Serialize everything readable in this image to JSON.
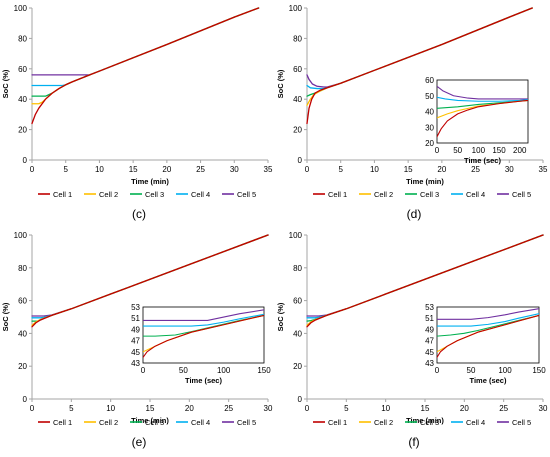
{
  "colors": {
    "cell1": "#c00000",
    "cell2": "#ffc000",
    "cell3": "#00b050",
    "cell4": "#00b0f0",
    "cell5": "#7030a0",
    "axis": "#a6a6a6",
    "inset_frame": "#000000"
  },
  "chart_data": [
    {
      "panel_label": "(c)",
      "type": "line",
      "xlabel": "Time (min)",
      "ylabel": "SoC (%)",
      "xlim": [
        0,
        35
      ],
      "ylim": [
        0,
        100
      ],
      "xticks": [
        0,
        5,
        10,
        15,
        20,
        25,
        30,
        35
      ],
      "yticks": [
        0,
        20,
        40,
        60,
        80,
        100
      ],
      "grid": false,
      "legend_position": "bottom",
      "series": [
        {
          "name": "Cell 1",
          "color_key": "cell1",
          "x": [
            0,
            0.5,
            1,
            2,
            3,
            4,
            5,
            6,
            8,
            10,
            20,
            30,
            33.6
          ],
          "y": [
            24,
            30,
            34,
            40,
            44,
            47,
            49.5,
            51.5,
            55,
            58.5,
            76,
            94,
            100
          ]
        },
        {
          "name": "Cell 2",
          "color_key": "cell2",
          "x": [
            0,
            1,
            1.5,
            2,
            3,
            4,
            5,
            6,
            8,
            10,
            20,
            30,
            33.6
          ],
          "y": [
            37,
            37,
            38,
            40,
            44,
            47,
            49.5,
            51.5,
            55,
            58.5,
            76,
            94,
            100
          ]
        },
        {
          "name": "Cell 3",
          "color_key": "cell3",
          "x": [
            0,
            2,
            3,
            4,
            5,
            6,
            8,
            10,
            20,
            30,
            33.6
          ],
          "y": [
            42,
            42,
            44,
            47,
            49.5,
            51.5,
            55,
            58.5,
            76,
            94,
            100
          ]
        },
        {
          "name": "Cell 4",
          "color_key": "cell4",
          "x": [
            0,
            4.5,
            5,
            6,
            8,
            10,
            20,
            30,
            33.6
          ],
          "y": [
            49,
            49,
            49.5,
            51.5,
            55,
            58.5,
            76,
            94,
            100
          ]
        },
        {
          "name": "Cell 5",
          "color_key": "cell5",
          "x": [
            0,
            8.5,
            10,
            20,
            30,
            33.6
          ],
          "y": [
            56,
            56,
            58.5,
            76,
            94,
            100
          ]
        }
      ]
    },
    {
      "panel_label": "(d)",
      "type": "line",
      "xlabel": "Time (min)",
      "ylabel": "SoC (%)",
      "xlim": [
        0,
        35
      ],
      "ylim": [
        0,
        100
      ],
      "xticks": [
        0,
        5,
        10,
        15,
        20,
        25,
        30,
        35
      ],
      "yticks": [
        0,
        20,
        40,
        60,
        80,
        100
      ],
      "grid": false,
      "legend_position": "bottom",
      "series": [
        {
          "name": "Cell 1",
          "color_key": "cell1",
          "x": [
            0,
            0.3,
            0.7,
            1.2,
            2,
            3,
            5,
            10,
            20,
            30,
            33.4
          ],
          "y": [
            24,
            34,
            40,
            44,
            46,
            47.5,
            50.5,
            59,
            76,
            94,
            100
          ]
        },
        {
          "name": "Cell 2",
          "color_key": "cell2",
          "x": [
            0,
            0.5,
            1,
            2,
            3,
            5,
            10,
            20,
            30,
            33.4
          ],
          "y": [
            36,
            40,
            43,
            45.5,
            47.5,
            50.5,
            59,
            76,
            94,
            100
          ]
        },
        {
          "name": "Cell 3",
          "color_key": "cell3",
          "x": [
            0,
            0.5,
            1.5,
            2.5,
            3,
            5,
            10,
            20,
            30,
            33.4
          ],
          "y": [
            42,
            43,
            44.5,
            46.5,
            47.5,
            50.5,
            59,
            76,
            94,
            100
          ]
        },
        {
          "name": "Cell 4",
          "color_key": "cell4",
          "x": [
            0,
            0.5,
            1.5,
            2.5,
            3,
            5,
            10,
            20,
            30,
            33.4
          ],
          "y": [
            49,
            47.5,
            47,
            47,
            47.5,
            50.5,
            59,
            76,
            94,
            100
          ]
        },
        {
          "name": "Cell 5",
          "color_key": "cell5",
          "x": [
            0,
            0.3,
            0.8,
            1.5,
            2.5,
            3,
            5,
            10,
            20,
            30,
            33.4
          ],
          "y": [
            56,
            53,
            50,
            48.5,
            48,
            48,
            50.5,
            59,
            76,
            94,
            100
          ]
        }
      ],
      "inset": {
        "xlabel": "Time (sec)",
        "xlim": [
          0,
          220
        ],
        "ylim": [
          20,
          60
        ],
        "xticks": [
          0,
          50,
          100,
          150,
          200
        ],
        "yticks": [
          20,
          30,
          40,
          50,
          60
        ],
        "series": [
          {
            "name": "Cell 1",
            "color_key": "cell1",
            "x": [
              0,
              10,
              25,
              50,
              75,
              100,
              150,
              200,
              220
            ],
            "y": [
              24,
              29,
              34,
              38.5,
              41,
              43,
              45,
              46.5,
              47
            ]
          },
          {
            "name": "Cell 2",
            "color_key": "cell2",
            "x": [
              0,
              25,
              50,
              75,
              100,
              150,
              200,
              220
            ],
            "y": [
              36,
              38.5,
              40.5,
              42,
              43.5,
              45,
              46.5,
              47
            ]
          },
          {
            "name": "Cell 3",
            "color_key": "cell3",
            "x": [
              0,
              50,
              100,
              150,
              200,
              220
            ],
            "y": [
              42,
              43,
              44.5,
              45.5,
              46.5,
              47
            ]
          },
          {
            "name": "Cell 4",
            "color_key": "cell4",
            "x": [
              0,
              20,
              50,
              100,
              150,
              200,
              220
            ],
            "y": [
              49,
              48,
              47,
              46.5,
              46.5,
              47,
              47.5
            ]
          },
          {
            "name": "Cell 5",
            "color_key": "cell5",
            "x": [
              0,
              15,
              40,
              75,
              100,
              150,
              200,
              220
            ],
            "y": [
              56,
              53,
              50,
              48.5,
              48,
              48,
              48,
              48
            ]
          }
        ]
      }
    },
    {
      "panel_label": "(e)",
      "type": "line",
      "xlabel": "Time (min)",
      "ylabel": "SoC (%)",
      "xlim": [
        0,
        30
      ],
      "ylim": [
        0,
        100
      ],
      "xticks": [
        0,
        5,
        10,
        15,
        20,
        25,
        30
      ],
      "yticks": [
        0,
        20,
        40,
        60,
        80,
        100
      ],
      "grid": false,
      "legend_position": "bottom",
      "series": [
        {
          "name": "Cell 1",
          "color_key": "cell1",
          "x": [
            0,
            0.5,
            1,
            1.5,
            2.5,
            5,
            10,
            20,
            30
          ],
          "y": [
            44,
            46.5,
            48,
            49,
            51,
            55,
            64,
            82,
            100
          ]
        },
        {
          "name": "Cell 2",
          "color_key": "cell2",
          "x": [
            0,
            0.5,
            1,
            1.5,
            2.5,
            5,
            10,
            20,
            30
          ],
          "y": [
            45,
            47,
            48.3,
            49.2,
            51,
            55,
            64,
            82,
            100
          ]
        },
        {
          "name": "Cell 3",
          "color_key": "cell3",
          "x": [
            0,
            0.7,
            1.2,
            1.5,
            2.5,
            5,
            10,
            20,
            30
          ],
          "y": [
            47.5,
            47.5,
            48.5,
            49.2,
            51,
            55,
            64,
            82,
            100
          ]
        },
        {
          "name": "Cell 4",
          "color_key": "cell4",
          "x": [
            0,
            1.1,
            1.5,
            2.5,
            5,
            10,
            20,
            30
          ],
          "y": [
            49.5,
            49.5,
            49.8,
            51,
            55,
            64,
            82,
            100
          ]
        },
        {
          "name": "Cell 5",
          "color_key": "cell5",
          "x": [
            0,
            1.5,
            2.5,
            5,
            10,
            20,
            30
          ],
          "y": [
            50.6,
            50.6,
            51.2,
            55,
            64,
            82,
            100
          ]
        }
      ],
      "inset": {
        "xlabel": "Time (sec)",
        "xlim": [
          0,
          150
        ],
        "ylim": [
          43,
          53
        ],
        "xticks": [
          0,
          50,
          100,
          150
        ],
        "yticks": [
          43,
          45,
          47,
          49,
          51,
          53
        ],
        "series": [
          {
            "name": "Cell 1",
            "color_key": "cell1",
            "x": [
              0,
              5,
              15,
              30,
              60,
              90,
              120,
              150
            ],
            "y": [
              44,
              45,
              46,
              47,
              48.5,
              49.5,
              50.5,
              51.5
            ]
          },
          {
            "name": "Cell 2",
            "color_key": "cell2",
            "x": [
              0,
              15,
              30,
              60,
              90,
              120,
              150
            ],
            "y": [
              45,
              46,
              47,
              48.5,
              49.5,
              50.5,
              51.5
            ]
          },
          {
            "name": "Cell 3",
            "color_key": "cell3",
            "x": [
              0,
              15,
              40,
              60,
              90,
              120,
              150
            ],
            "y": [
              47.8,
              47.8,
              48,
              48.6,
              49.6,
              50.6,
              51.5
            ]
          },
          {
            "name": "Cell 4",
            "color_key": "cell4",
            "x": [
              0,
              60,
              80,
              100,
              120,
              150
            ],
            "y": [
              49.6,
              49.6,
              49.8,
              50.3,
              50.9,
              51.7
            ]
          },
          {
            "name": "Cell 5",
            "color_key": "cell5",
            "x": [
              0,
              80,
              100,
              120,
              150
            ],
            "y": [
              50.6,
              50.6,
              51.2,
              51.8,
              52.5
            ]
          }
        ]
      }
    },
    {
      "panel_label": "(f)",
      "type": "line",
      "xlabel": "Time (min)",
      "ylabel": "SoC (%)",
      "xlim": [
        0,
        30
      ],
      "ylim": [
        0,
        100
      ],
      "xticks": [
        0,
        5,
        10,
        15,
        20,
        25,
        30
      ],
      "yticks": [
        0,
        20,
        40,
        60,
        80,
        100
      ],
      "grid": false,
      "legend_position": "bottom",
      "series": [
        {
          "name": "Cell 1",
          "color_key": "cell1",
          "x": [
            0,
            0.5,
            1,
            1.5,
            2.5,
            5,
            10,
            20,
            30
          ],
          "y": [
            44,
            46.5,
            48,
            49,
            51,
            55,
            64,
            82,
            100
          ]
        },
        {
          "name": "Cell 2",
          "color_key": "cell2",
          "x": [
            0,
            0.5,
            1,
            1.5,
            2.5,
            5,
            10,
            20,
            30
          ],
          "y": [
            45,
            47,
            48.3,
            49.2,
            51,
            55,
            64,
            82,
            100
          ]
        },
        {
          "name": "Cell 3",
          "color_key": "cell3",
          "x": [
            0,
            0.5,
            1,
            1.5,
            2.5,
            5,
            10,
            20,
            30
          ],
          "y": [
            47.5,
            47.8,
            48.5,
            49.2,
            51,
            55,
            64,
            82,
            100
          ]
        },
        {
          "name": "Cell 4",
          "color_key": "cell4",
          "x": [
            0,
            1,
            1.5,
            2.5,
            5,
            10,
            20,
            30
          ],
          "y": [
            49.5,
            49.5,
            49.8,
            51,
            55,
            64,
            82,
            100
          ]
        },
        {
          "name": "Cell 5",
          "color_key": "cell5",
          "x": [
            0,
            1.5,
            2.5,
            5,
            10,
            20,
            30
          ],
          "y": [
            50.6,
            50.6,
            51.2,
            55,
            64,
            82,
            100
          ]
        }
      ],
      "inset": {
        "xlabel": "Time (sec)",
        "xlim": [
          0,
          150
        ],
        "ylim": [
          43,
          53
        ],
        "xticks": [
          0,
          50,
          100,
          150
        ],
        "yticks": [
          43,
          45,
          47,
          49,
          51,
          53
        ],
        "series": [
          {
            "name": "Cell 1",
            "color_key": "cell1",
            "x": [
              0,
              5,
              15,
              30,
              60,
              90,
              120,
              150
            ],
            "y": [
              44,
              45,
              46,
              47,
              48.5,
              49.5,
              50.5,
              51.5
            ]
          },
          {
            "name": "Cell 2",
            "color_key": "cell2",
            "x": [
              0,
              15,
              30,
              60,
              90,
              120,
              150
            ],
            "y": [
              45,
              46,
              47,
              48.5,
              49.5,
              50.5,
              51.5
            ]
          },
          {
            "name": "Cell 3",
            "color_key": "cell3",
            "x": [
              0,
              20,
              40,
              60,
              90,
              120,
              150
            ],
            "y": [
              47.8,
              48,
              48.3,
              48.8,
              49.7,
              50.6,
              51.5
            ]
          },
          {
            "name": "Cell 4",
            "color_key": "cell4",
            "x": [
              0,
              50,
              75,
              100,
              120,
              150
            ],
            "y": [
              49.6,
              49.6,
              49.9,
              50.4,
              51,
              51.8
            ]
          },
          {
            "name": "Cell 5",
            "color_key": "cell5",
            "x": [
              0,
              50,
              75,
              100,
              120,
              150
            ],
            "y": [
              50.8,
              50.8,
              51.1,
              51.6,
              52.1,
              52.7
            ]
          }
        ]
      }
    }
  ]
}
